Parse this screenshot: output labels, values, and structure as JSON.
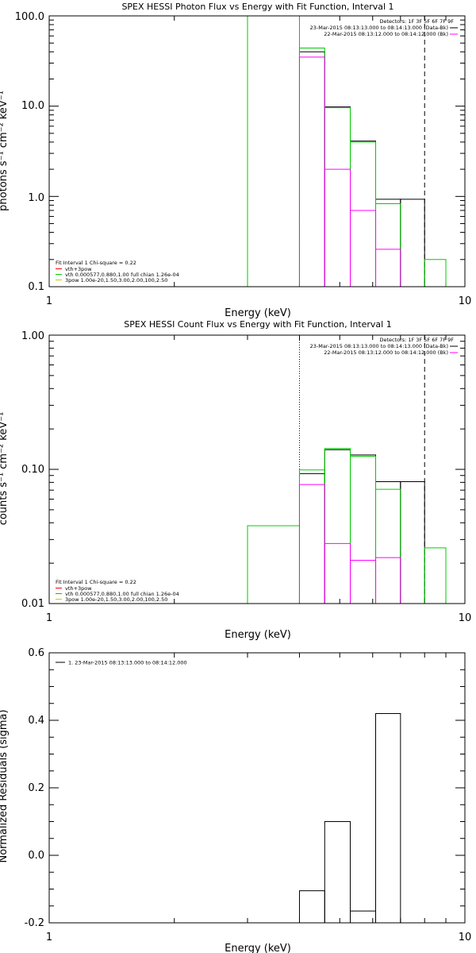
{
  "chart_data": [
    {
      "type": "line",
      "title": "SPEX HESSI Photon Flux vs Energy with Fit Function, Interval 1",
      "xlabel": "Energy (keV)",
      "ylabel": "photons s⁻¹ cm⁻² keV⁻¹",
      "xscale": "log",
      "yscale": "log",
      "xlim": [
        1,
        10
      ],
      "ylim": [
        0.1,
        100
      ],
      "x_ticks": [
        "1",
        "10"
      ],
      "y_ticks": [
        "0.1",
        "1.0",
        "10.0",
        "100.0"
      ],
      "vlines": [
        {
          "x": 4.0,
          "style": "dotted"
        },
        {
          "x": 8.0,
          "style": "dashed"
        }
      ],
      "legend_top_right": {
        "detectors": "Detectors: 1F 3F 5F 6F 7F 9F",
        "lines": [
          {
            "text": "23-Mar-2015 08:13:13.000 to 08:14:13.000 (Data-Bk)",
            "color": "#000000"
          },
          {
            "text": "22-Mar-2015 08:13:12.000 to 08:14:12.000 (Bk)",
            "color": "#ff00ff"
          }
        ]
      },
      "legend_bottom_left": {
        "header": "Fit Interval  1    Chi-square = 0.22",
        "lines": [
          {
            "text": "vth+3pow",
            "color": "#ff0000"
          },
          {
            "text": "vth 0.000577,0.880,1.00  full chian 1.26e-04",
            "color": "#00cc00"
          },
          {
            "text": "3pow 1.00e-20,1.50,3.00,2.00,100,2.50",
            "color": "#cccc00"
          }
        ]
      },
      "series": [
        {
          "name": "Data-Bk",
          "color": "#000000",
          "bins": [
            [
              4.0,
              4.6,
              40
            ],
            [
              4.6,
              5.3,
              9.8
            ],
            [
              5.3,
              6.1,
              4.1
            ],
            [
              6.1,
              7.0,
              0.93
            ],
            [
              7.0,
              8.0,
              0.93
            ]
          ]
        },
        {
          "name": "vth+3pow",
          "color": "#00cc00",
          "bins": [
            [
              3.0,
              4.0,
              100
            ],
            [
              4.0,
              4.6,
              44
            ],
            [
              4.6,
              5.3,
              9.6
            ],
            [
              5.3,
              6.1,
              4.0
            ],
            [
              6.1,
              7.0,
              0.83
            ],
            [
              8.0,
              9.0,
              0.2
            ]
          ]
        },
        {
          "name": "Bk",
          "color": "#ff00ff",
          "bins": [
            [
              4.0,
              4.6,
              35
            ],
            [
              4.6,
              5.3,
              2.0
            ],
            [
              5.3,
              6.1,
              0.7
            ],
            [
              6.1,
              7.0,
              0.26
            ],
            [
              7.0,
              8.0,
              0.1
            ]
          ]
        }
      ]
    },
    {
      "type": "line",
      "title": "SPEX HESSI Count Flux vs Energy with Fit Function, Interval 1",
      "xlabel": "Energy (keV)",
      "ylabel": "counts s⁻¹ cm⁻² keV⁻¹",
      "xscale": "log",
      "yscale": "log",
      "xlim": [
        1,
        10
      ],
      "ylim": [
        0.01,
        1
      ],
      "x_ticks": [
        "1",
        "10"
      ],
      "y_ticks": [
        "0.01",
        "0.10",
        "1.00"
      ],
      "vlines": [
        {
          "x": 4.0,
          "style": "dotted"
        },
        {
          "x": 8.0,
          "style": "dashed"
        }
      ],
      "legend_top_right": {
        "detectors": "Detectors: 1F 3F 5F 6F 7F 9F",
        "lines": [
          {
            "text": "23-Mar-2015 08:13:13.000 to 08:14:13.000 (Data-Bk)",
            "color": "#000000"
          },
          {
            "text": "22-Mar-2015 08:13:12.000 to 08:14:12.000 (Bk)",
            "color": "#ff00ff"
          }
        ]
      },
      "legend_bottom_left": {
        "header": "Fit Interval  1    Chi-square = 0.22",
        "lines": [
          {
            "text": "vth+3pow",
            "color": "#ff0000"
          },
          {
            "text": "vth 0.000577,0.880,1.00  full chian 1.26e-04",
            "color": "#00cc00"
          },
          {
            "text": "3pow 1.00e-20,1.50,3.00,2.00,100,2.50",
            "color": "#cccc00"
          }
        ]
      },
      "series": [
        {
          "name": "Data-Bk",
          "color": "#000000",
          "bins": [
            [
              4.0,
              4.6,
              0.093
            ],
            [
              4.6,
              5.3,
              0.14
            ],
            [
              5.3,
              6.1,
              0.128
            ],
            [
              6.1,
              7.0,
              0.081
            ],
            [
              7.0,
              8.0,
              0.081
            ]
          ]
        },
        {
          "name": "vth+3pow",
          "color": "#00cc00",
          "bins": [
            [
              3.0,
              4.0,
              0.038
            ],
            [
              4.0,
              4.6,
              0.099
            ],
            [
              4.6,
              5.3,
              0.143
            ],
            [
              5.3,
              6.1,
              0.125
            ],
            [
              6.1,
              7.0,
              0.071
            ],
            [
              8.0,
              9.0,
              0.026
            ]
          ]
        },
        {
          "name": "Bk",
          "color": "#ff00ff",
          "bins": [
            [
              4.0,
              4.6,
              0.077
            ],
            [
              4.6,
              5.3,
              0.028
            ],
            [
              5.3,
              6.1,
              0.021
            ],
            [
              6.1,
              7.0,
              0.022
            ],
            [
              7.0,
              8.0,
              0.01
            ]
          ]
        }
      ]
    },
    {
      "type": "line",
      "title": "",
      "xlabel": "Energy (keV)",
      "ylabel": "Normalized Residuals (sigma)",
      "xscale": "log",
      "yscale": "linear",
      "xlim": [
        1,
        10
      ],
      "ylim": [
        -0.2,
        0.6
      ],
      "x_ticks": [
        "1",
        "10"
      ],
      "y_ticks": [
        "-0.2",
        "0.0",
        "0.2",
        "0.4",
        "0.6"
      ],
      "legend": [
        {
          "text": "1. 23-Mar-2015 08:13:13.000 to 08:14:12.000",
          "color": "#000000"
        }
      ],
      "series": [
        {
          "color": "#000000",
          "bins": [
            [
              4.0,
              4.6,
              -0.105
            ],
            [
              4.6,
              5.3,
              0.1
            ],
            [
              5.3,
              6.1,
              -0.165
            ],
            [
              6.1,
              7.0,
              0.42
            ]
          ]
        }
      ]
    }
  ]
}
